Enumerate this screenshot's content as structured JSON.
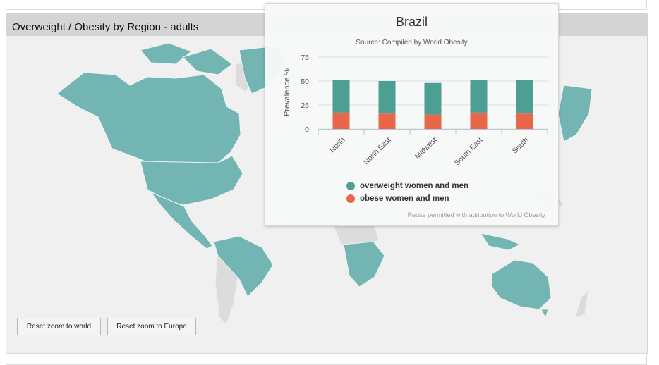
{
  "panel": {
    "title": "Overweight / Obesity by Region - adults"
  },
  "map": {
    "highlight_color": "#72b5b3",
    "no_data_color": "#dcdcdc",
    "buttons": {
      "reset_world": "Reset zoom to world",
      "reset_europe": "Reset zoom to Europe"
    }
  },
  "popup": {
    "title": "Brazil",
    "subtitle": "Source: Compiled by World Obesity",
    "credit": "Reuse permitted with attribution to World Obesity"
  },
  "chart_data": {
    "type": "bar",
    "stacked": true,
    "categories": [
      "North",
      "North East",
      "Midwest",
      "South East",
      "South"
    ],
    "series": [
      {
        "name": "obese women and men",
        "color": "#e8674a",
        "values": [
          17,
          16,
          15,
          17,
          16
        ]
      },
      {
        "name": "overweight women and men",
        "color": "#4d9e93",
        "values": [
          34,
          34,
          33,
          34,
          35
        ]
      }
    ],
    "title": "Brazil",
    "subtitle": "Source: Compiled by World Obesity",
    "ylabel": "Prevalence %",
    "xlabel": "",
    "ylim": [
      0,
      75
    ],
    "yticks": [
      0,
      25,
      50,
      75
    ],
    "grid": true,
    "legend": "bottom"
  }
}
